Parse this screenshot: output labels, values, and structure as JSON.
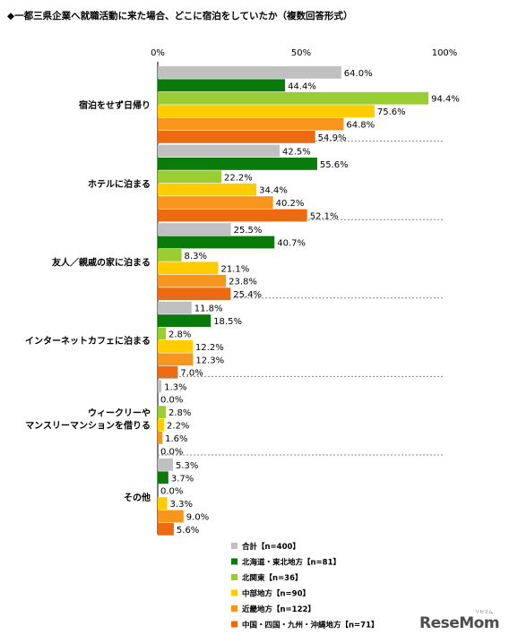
{
  "chart_data": {
    "type": "bar",
    "orientation": "horizontal",
    "title": "◆一都三県企業へ就職活動に来た場合、どこに宿泊をしていたか（複数回答形式）",
    "x_tick_labels": [
      "0%",
      "50%",
      "100%"
    ],
    "xlim": [
      0,
      100
    ],
    "value_suffix": "%",
    "categories": [
      "宿泊をせず日帰り",
      "ホテルに泊まる",
      "友人／親戚の家に泊まる",
      "インターネットカフェに泊まる",
      "ウィークリーや\nマンスリーマンションを借りる",
      "その他"
    ],
    "series": [
      {
        "name": "合計【n=400】",
        "color": "#c0c0c0",
        "values": [
          64.0,
          42.5,
          25.5,
          11.8,
          1.3,
          5.3
        ]
      },
      {
        "name": "北海道・東北地方【n=81】",
        "color": "#0a7a0a",
        "values": [
          44.4,
          55.6,
          40.7,
          18.5,
          0.0,
          3.7
        ]
      },
      {
        "name": "北関東【n=36】",
        "color": "#9acd32",
        "values": [
          94.4,
          22.2,
          8.3,
          2.8,
          2.8,
          0.0
        ]
      },
      {
        "name": "中部地方【n=90】",
        "color": "#ffcc00",
        "values": [
          75.6,
          34.4,
          21.1,
          12.2,
          2.2,
          3.3
        ]
      },
      {
        "name": "近畿地方【n=122】",
        "color": "#f7961e",
        "values": [
          64.8,
          40.2,
          23.8,
          12.3,
          1.6,
          9.0
        ]
      },
      {
        "name": "中国・四国・九州・沖縄地方【n=71】",
        "color": "#ee6a10",
        "values": [
          54.9,
          52.1,
          25.4,
          7.0,
          0.0,
          5.6
        ]
      }
    ],
    "grid": false,
    "legend_position": "bottom"
  },
  "logo": {
    "text": "ReseMom",
    "sub": "リセマム"
  }
}
